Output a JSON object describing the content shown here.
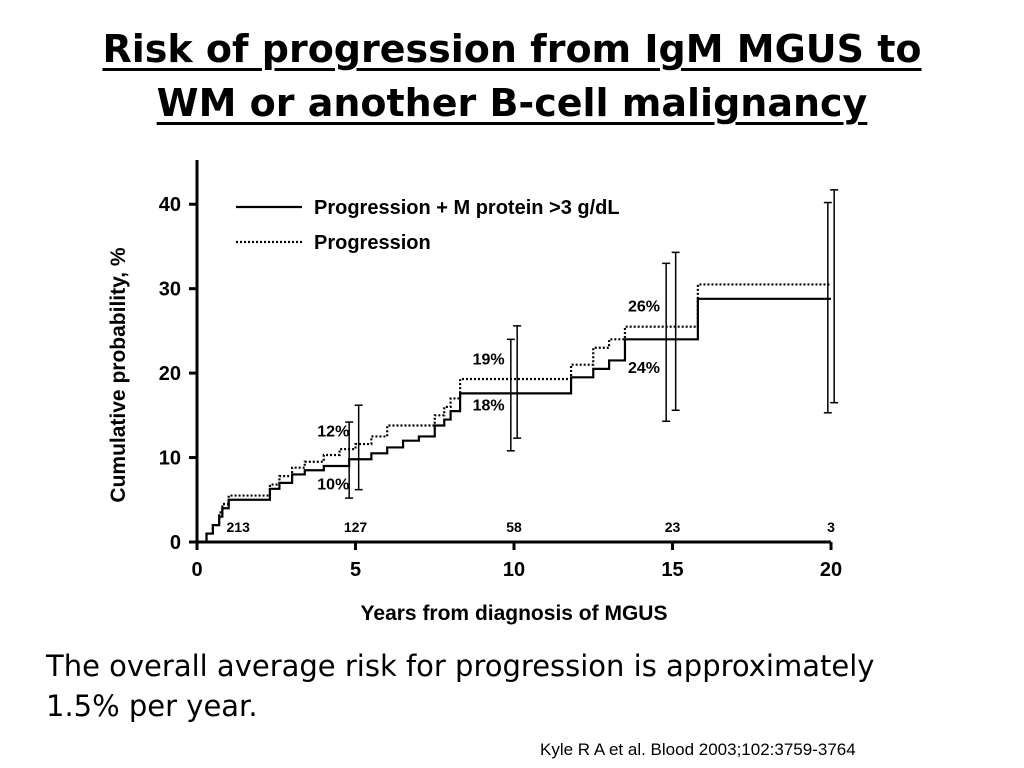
{
  "slide": {
    "title_line1": "Risk of progression from IgM MGUS to",
    "title_line2": "WM or another B-cell malignancy",
    "statement_line1": "The overall average risk for progression is approximately",
    "statement_line2": "1.5% per year.",
    "citation": "Kyle R A et al. Blood 2003;102:3759-3764"
  },
  "chart_data": {
    "type": "line",
    "xlabel": "Years from diagnosis of MGUS",
    "ylabel": "Cumulative probability, %",
    "xlim": [
      0,
      20
    ],
    "ylim": [
      0,
      45
    ],
    "xticks": [
      0,
      5,
      10,
      15,
      20
    ],
    "yticks": [
      0,
      10,
      20,
      30,
      40
    ],
    "grid": false,
    "legend_position": "top-left",
    "series": [
      {
        "name": "Progression + M protein >3 g/dL",
        "style": "solid",
        "color": "#000000",
        "x": [
          0,
          0.3,
          0.5,
          0.7,
          0.8,
          1.0,
          2.3,
          2.6,
          3.0,
          3.4,
          4.0,
          4.8,
          5.5,
          6.0,
          6.5,
          7.0,
          7.5,
          7.8,
          8.0,
          8.3,
          11.8,
          12.5,
          13.0,
          13.5,
          15.0,
          15.8,
          20.0
        ],
        "y": [
          0,
          1.0,
          2.0,
          3.0,
          4.0,
          5.0,
          6.3,
          7.0,
          8.0,
          8.5,
          9.0,
          9.8,
          10.5,
          11.2,
          12.0,
          12.5,
          13.8,
          14.5,
          15.5,
          17.6,
          19.5,
          20.5,
          21.5,
          24.0,
          24.0,
          28.8,
          28.8
        ]
      },
      {
        "name": "Progression",
        "style": "dotted",
        "color": "#000000",
        "x": [
          0,
          0.3,
          0.5,
          0.7,
          0.8,
          1.0,
          2.3,
          2.6,
          3.0,
          3.4,
          4.0,
          4.5,
          5.0,
          5.5,
          6.0,
          7.5,
          7.8,
          8.0,
          8.3,
          11.8,
          12.5,
          13.0,
          13.5,
          15.0,
          15.8,
          20.0
        ],
        "y": [
          0,
          1.0,
          2.0,
          3.5,
          4.5,
          5.5,
          6.8,
          7.8,
          8.8,
          9.5,
          10.3,
          11.0,
          11.6,
          12.5,
          13.8,
          15.0,
          16.0,
          17.0,
          19.3,
          21.0,
          23.0,
          24.0,
          25.5,
          25.5,
          30.5,
          30.5
        ]
      }
    ],
    "error_bars": [
      {
        "x": 4.8,
        "low": 5.2,
        "high": 14.2
      },
      {
        "x": 5.1,
        "low": 6.2,
        "high": 16.2
      },
      {
        "x": 9.9,
        "low": 10.8,
        "high": 24.0
      },
      {
        "x": 10.1,
        "low": 12.3,
        "high": 25.6
      },
      {
        "x": 14.8,
        "low": 14.3,
        "high": 33.0
      },
      {
        "x": 15.1,
        "low": 15.6,
        "high": 34.3
      },
      {
        "x": 19.9,
        "low": 15.3,
        "high": 40.2
      },
      {
        "x": 20.1,
        "low": 16.5,
        "high": 41.7
      }
    ],
    "annotations": [
      {
        "text": "12%",
        "x": 4.3,
        "y": 12.5
      },
      {
        "text": "10%",
        "x": 4.3,
        "y": 6.2
      },
      {
        "text": "19%",
        "x": 9.2,
        "y": 21.0
      },
      {
        "text": "18%",
        "x": 9.2,
        "y": 15.6
      },
      {
        "text": "26%",
        "x": 14.1,
        "y": 27.3
      },
      {
        "text": "24%",
        "x": 14.1,
        "y": 20.0
      }
    ],
    "at_risk": [
      {
        "x": 1.3,
        "label": "213"
      },
      {
        "x": 5.0,
        "label": "127"
      },
      {
        "x": 10.0,
        "label": "58"
      },
      {
        "x": 15.0,
        "label": "23"
      },
      {
        "x": 20.0,
        "label": "3"
      }
    ]
  }
}
